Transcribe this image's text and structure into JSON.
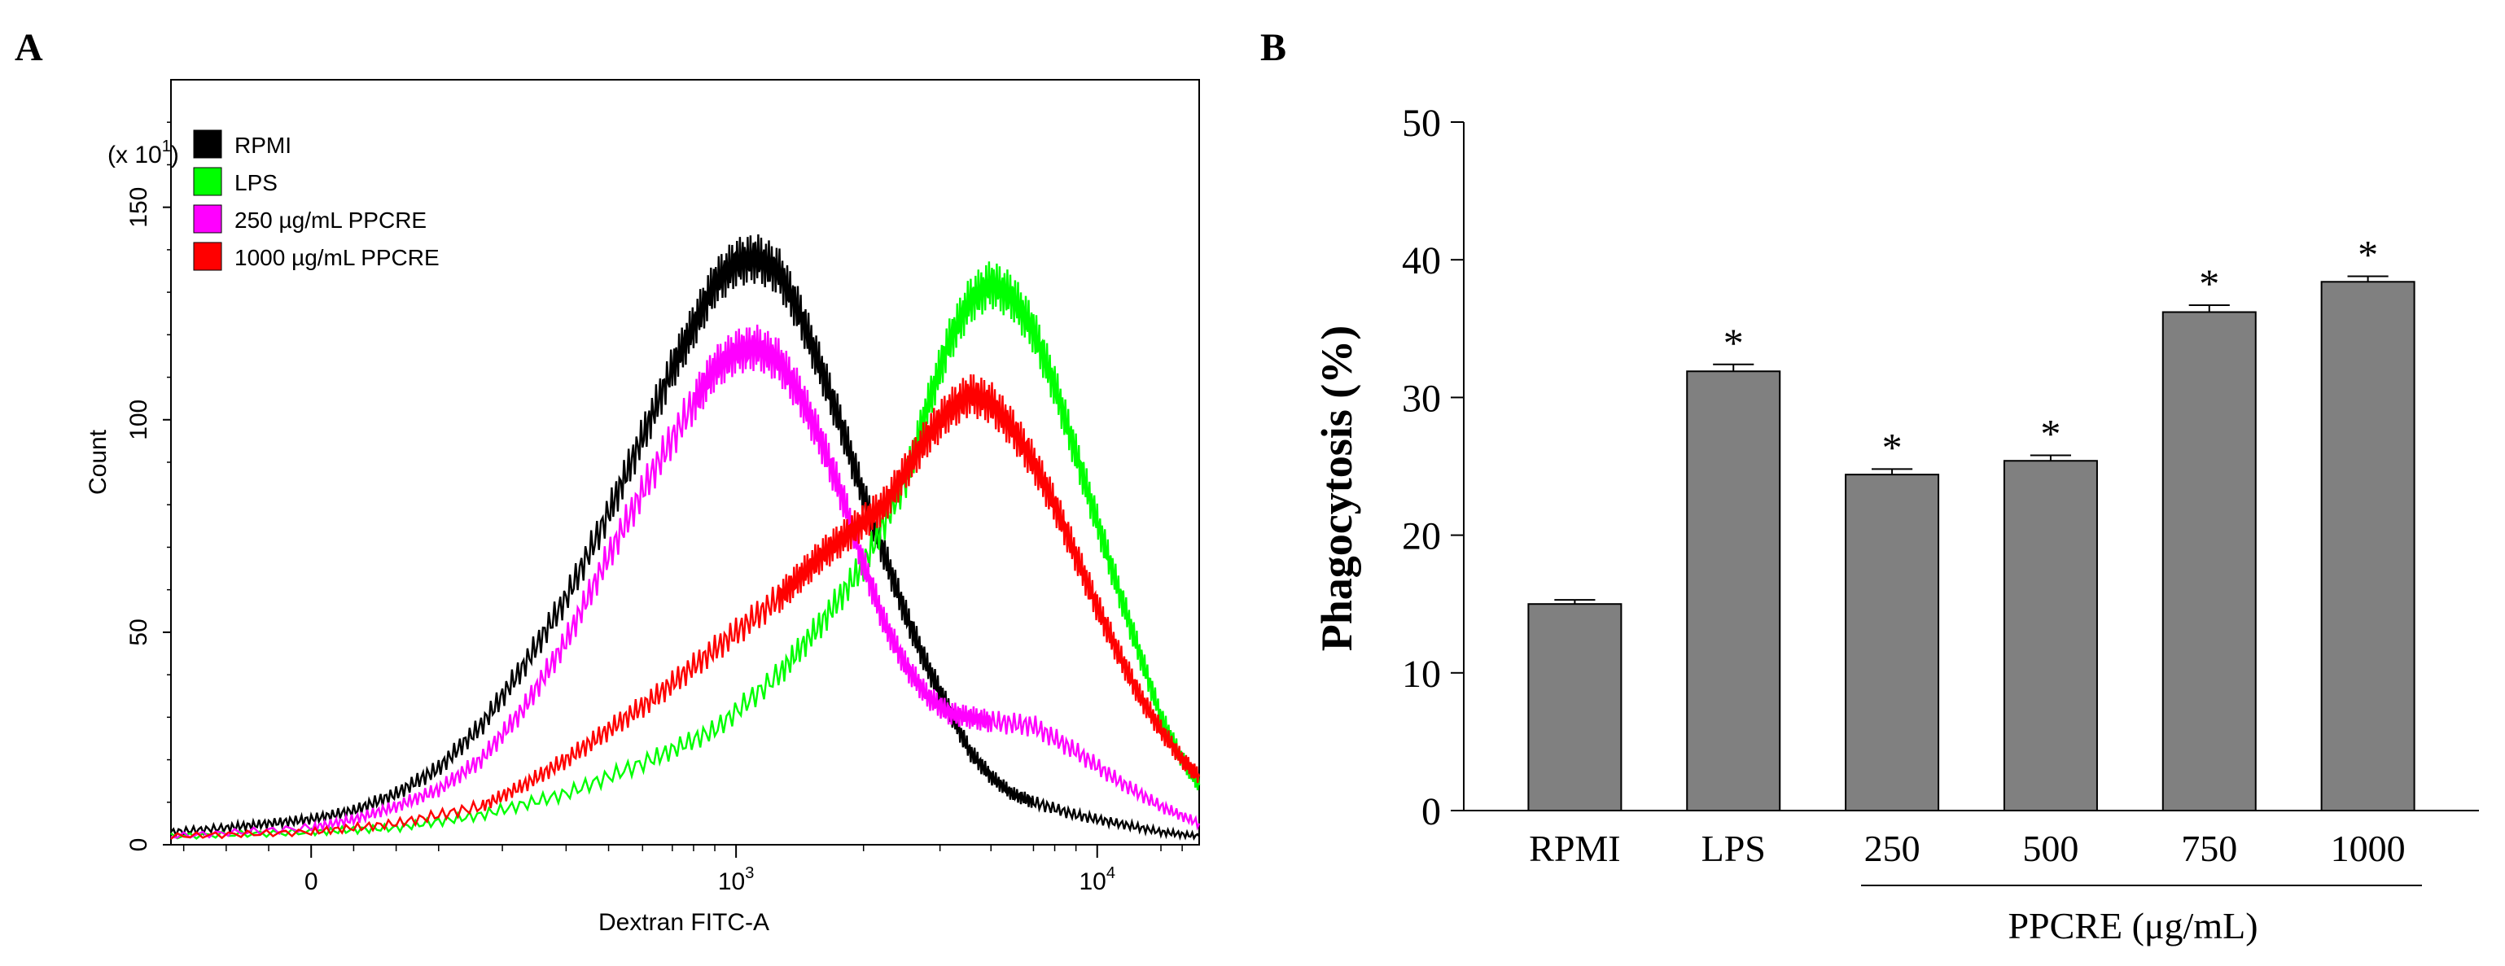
{
  "panel_a_letter": "A",
  "panel_b_letter": "B",
  "chart_data": [
    {
      "type": "line",
      "panel": "A",
      "xlabel": "Dextran FITC-A",
      "ylabel": "Count",
      "y_multiplier": "(x 10",
      "y_multiplier_exp": "1",
      "y_multiplier_close": ")",
      "ylim": [
        0,
        180
      ],
      "yticks": [
        0,
        50,
        100,
        150
      ],
      "x_ticks": [
        {
          "label": "0",
          "sup": "",
          "pos": 0.0
        },
        {
          "label": "10",
          "sup": "3",
          "pos": 1.0
        },
        {
          "label": "10",
          "sup": "4",
          "pos": 1.85
        }
      ],
      "xlim": [
        -0.33,
        2.09
      ],
      "legend_position": "top-left",
      "series": [
        {
          "name": "RPMI",
          "color": "#000000",
          "x": [
            -0.33,
            -0.2,
            -0.1,
            0.0,
            0.1,
            0.2,
            0.3,
            0.4,
            0.5,
            0.6,
            0.7,
            0.78,
            0.85,
            0.9,
            0.95,
            1.0,
            1.05,
            1.1,
            1.15,
            1.2,
            1.25,
            1.3,
            1.35,
            1.4,
            1.45,
            1.5,
            1.55,
            1.6,
            1.65,
            1.7,
            1.8,
            1.9,
            2.0,
            2.09
          ],
          "y": [
            3,
            4,
            5,
            6,
            8,
            12,
            18,
            28,
            42,
            58,
            78,
            96,
            112,
            122,
            132,
            137,
            138,
            135,
            125,
            112,
            98,
            82,
            68,
            54,
            42,
            32,
            22,
            16,
            12,
            10,
            7,
            5,
            3,
            2
          ]
        },
        {
          "name": "LPS",
          "color": "#00ff00",
          "x": [
            -0.33,
            0.0,
            0.2,
            0.4,
            0.6,
            0.8,
            0.95,
            1.1,
            1.2,
            1.3,
            1.4,
            1.45,
            1.5,
            1.55,
            1.6,
            1.65,
            1.7,
            1.75,
            1.8,
            1.85,
            1.9,
            1.95,
            2.0,
            2.05,
            2.09
          ],
          "y": [
            2,
            3,
            4,
            7,
            12,
            20,
            27,
            40,
            52,
            66,
            86,
            103,
            118,
            128,
            132,
            129,
            121,
            108,
            92,
            76,
            60,
            45,
            30,
            20,
            14
          ]
        },
        {
          "name": "250 µg/mL PPCRE",
          "color": "#ff00ff",
          "x": [
            -0.33,
            0.0,
            0.1,
            0.2,
            0.3,
            0.4,
            0.5,
            0.6,
            0.7,
            0.8,
            0.9,
            0.95,
            1.0,
            1.05,
            1.1,
            1.15,
            1.2,
            1.25,
            1.3,
            1.35,
            1.4,
            1.45,
            1.5,
            1.55,
            1.6,
            1.7,
            1.8,
            1.9,
            2.0,
            2.09
          ],
          "y": [
            2,
            4,
            6,
            9,
            13,
            20,
            32,
            48,
            68,
            87,
            104,
            112,
            116,
            117,
            114,
            106,
            95,
            82,
            66,
            52,
            42,
            35,
            31,
            30,
            29,
            28,
            22,
            15,
            9,
            5
          ]
        },
        {
          "name": "1000 µg/mL PPCRE",
          "color": "#ff0000",
          "x": [
            -0.33,
            0.0,
            0.2,
            0.4,
            0.5,
            0.6,
            0.7,
            0.8,
            0.9,
            1.0,
            1.1,
            1.15,
            1.2,
            1.25,
            1.3,
            1.35,
            1.4,
            1.45,
            1.5,
            1.55,
            1.6,
            1.65,
            1.7,
            1.75,
            1.8,
            1.85,
            1.9,
            1.95,
            2.0,
            2.05,
            2.09
          ],
          "y": [
            2,
            3,
            5,
            9,
            14,
            20,
            27,
            34,
            42,
            50,
            58,
            63,
            68,
            72,
            76,
            80,
            88,
            96,
            102,
            106,
            104,
            98,
            90,
            80,
            68,
            56,
            45,
            35,
            27,
            20,
            16
          ]
        }
      ]
    },
    {
      "type": "bar",
      "panel": "B",
      "categories": [
        "RPMI",
        "LPS",
        "250",
        "500",
        "750",
        "1000"
      ],
      "values": [
        15.0,
        31.9,
        24.4,
        25.4,
        36.2,
        38.4
      ],
      "errors": [
        0.3,
        0.5,
        0.4,
        0.4,
        0.5,
        0.4
      ],
      "significance": [
        "",
        "*",
        "*",
        "*",
        "*",
        "*"
      ],
      "ylabel": "Phagocytosis (%)",
      "ylim": [
        0,
        50
      ],
      "yticks": [
        0,
        10,
        20,
        30,
        40,
        50
      ],
      "group_label": "PPCRE (μg/mL)",
      "bar_color": "#808080"
    }
  ]
}
